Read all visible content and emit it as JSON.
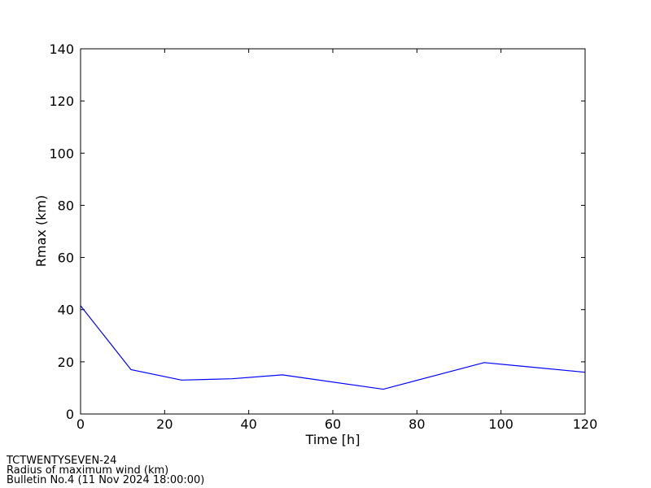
{
  "chart_data": {
    "type": "line",
    "x_label": "Time [h]",
    "y_label": "Rmax (km)",
    "x": [
      0,
      12,
      24,
      36,
      48,
      72,
      96,
      120
    ],
    "series": [
      {
        "color": "#0000ff",
        "values": [
          41.5,
          17,
          13,
          13.5,
          15,
          9.5,
          19.7,
          16
        ]
      }
    ],
    "xlim": [
      0,
      120
    ],
    "xticks": [
      0,
      20,
      40,
      60,
      80,
      100,
      120
    ],
    "ylim": [
      0,
      140
    ],
    "yticks": [
      0,
      20,
      40,
      60,
      80,
      100,
      120,
      140
    ],
    "grid": false,
    "footer": [
      "TCTWENTYSEVEN-24",
      "Radius of maximum wind (km)",
      "Bulletin No.4 (11 Nov 2024  18:00:00)"
    ]
  }
}
